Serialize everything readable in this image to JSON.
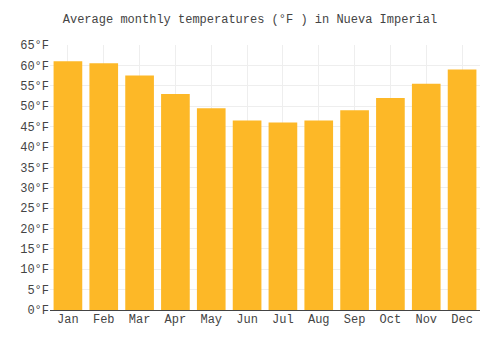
{
  "chart_data": {
    "type": "bar",
    "title": "Average monthly temperatures (°F ) in Nueva Imperial",
    "categories": [
      "Jan",
      "Feb",
      "Mar",
      "Apr",
      "May",
      "Jun",
      "Jul",
      "Aug",
      "Sep",
      "Oct",
      "Nov",
      "Dec"
    ],
    "values": [
      61,
      60.5,
      57.5,
      53,
      49.5,
      46.5,
      46,
      46.5,
      49,
      52,
      55.5,
      59
    ],
    "color": "#FDB827",
    "ylim": [
      0,
      65
    ],
    "yticks": [
      {
        "value": 0,
        "label": "0°F"
      },
      {
        "value": 5,
        "label": "5°F"
      },
      {
        "value": 10,
        "label": "10°F"
      },
      {
        "value": 15,
        "label": "15°F"
      },
      {
        "value": 20,
        "label": "20°F"
      },
      {
        "value": 25,
        "label": "25°F"
      },
      {
        "value": 30,
        "label": "30°F"
      },
      {
        "value": 35,
        "label": "35°F"
      },
      {
        "value": 40,
        "label": "40°F"
      },
      {
        "value": 45,
        "label": "45°F"
      },
      {
        "value": 50,
        "label": "50°F"
      },
      {
        "value": 55,
        "label": "55°F"
      },
      {
        "value": 60,
        "label": "60°F"
      },
      {
        "value": 65,
        "label": "65°F"
      }
    ],
    "grid": true
  }
}
